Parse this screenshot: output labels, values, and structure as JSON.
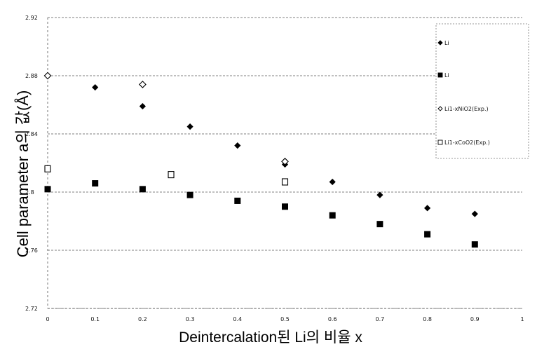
{
  "chart_data": {
    "type": "scatter",
    "xlabel": "Deintercalation된 Li의 비율 x",
    "ylabel": "Cell parameter a의 값(Å)",
    "xlim": [
      0,
      1
    ],
    "ylim": [
      2.72,
      2.92
    ],
    "x_ticks": [
      "0",
      "0.1",
      "0.2",
      "0.3",
      "0.4",
      "0.5",
      "0.6",
      "0.7",
      "0.8",
      "0.9",
      "1"
    ],
    "y_ticks": [
      "2.72",
      "2.76",
      "2.8",
      "2.84",
      "2.88",
      "2.92"
    ],
    "grid": "horizontal dashed",
    "legend_position": "top-right",
    "series": [
      {
        "name": "Li",
        "marker": "filled-diamond",
        "points": [
          [
            0.1,
            2.872
          ],
          [
            0.2,
            2.859
          ],
          [
            0.3,
            2.845
          ],
          [
            0.4,
            2.832
          ],
          [
            0.5,
            2.819
          ],
          [
            0.6,
            2.807
          ],
          [
            0.7,
            2.798
          ],
          [
            0.8,
            2.789
          ],
          [
            0.9,
            2.785
          ]
        ]
      },
      {
        "name": "Li",
        "marker": "filled-square",
        "points": [
          [
            0.0,
            2.802
          ],
          [
            0.1,
            2.806
          ],
          [
            0.2,
            2.802
          ],
          [
            0.3,
            2.798
          ],
          [
            0.4,
            2.794
          ],
          [
            0.5,
            2.79
          ],
          [
            0.6,
            2.784
          ],
          [
            0.7,
            2.778
          ],
          [
            0.8,
            2.771
          ],
          [
            0.9,
            2.764
          ]
        ]
      },
      {
        "name": "Li1-xNiO2(Exp.)",
        "marker": "open-diamond",
        "points": [
          [
            0.0,
            2.88
          ],
          [
            0.2,
            2.874
          ],
          [
            0.5,
            2.821
          ]
        ]
      },
      {
        "name": "Li1-xCoO2(Exp.)",
        "marker": "open-square",
        "points": [
          [
            0.0,
            2.816
          ],
          [
            0.26,
            2.812
          ],
          [
            0.5,
            2.807
          ]
        ]
      }
    ]
  }
}
